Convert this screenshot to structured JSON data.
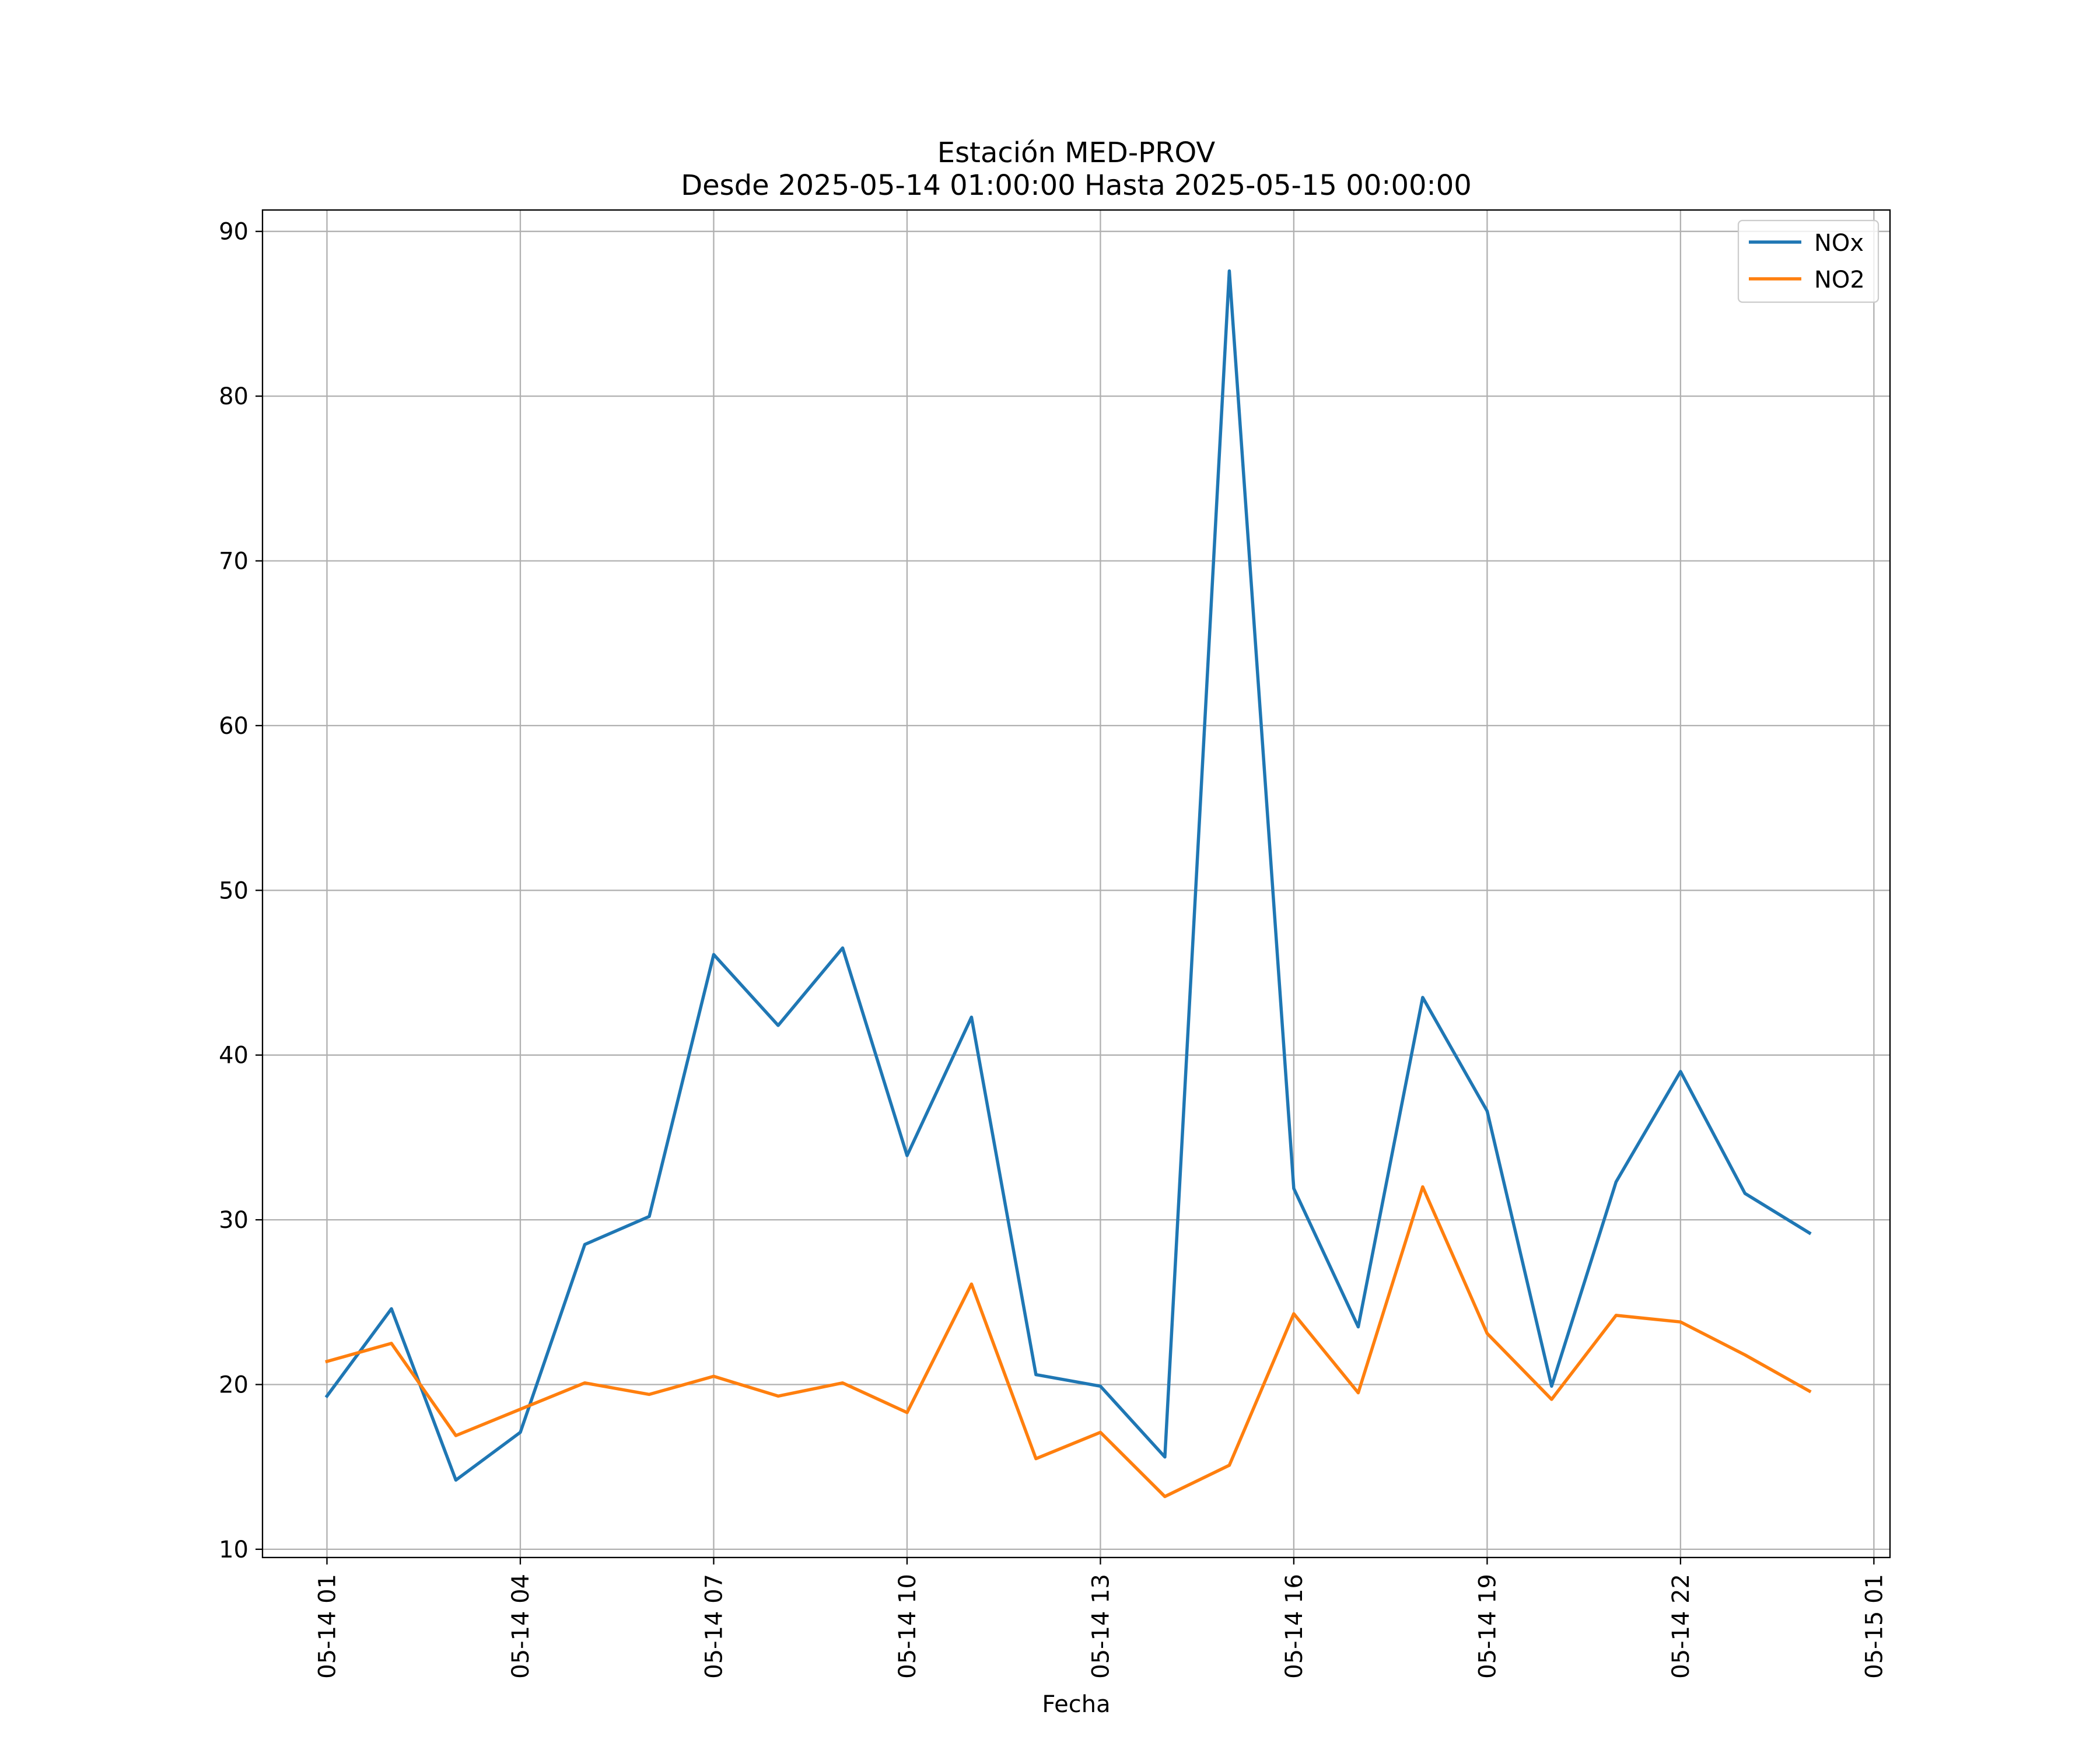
{
  "chart_data": {
    "type": "line",
    "title": "Estación MED-PROV",
    "subtitle": "Desde 2025-05-14 01:00:00 Hasta 2025-05-15 00:00:00",
    "xlabel": "Fecha",
    "ylabel": "",
    "x": [
      "2025-05-14 01:00",
      "2025-05-14 02:00",
      "2025-05-14 03:00",
      "2025-05-14 04:00",
      "2025-05-14 05:00",
      "2025-05-14 06:00",
      "2025-05-14 07:00",
      "2025-05-14 08:00",
      "2025-05-14 09:00",
      "2025-05-14 10:00",
      "2025-05-14 11:00",
      "2025-05-14 12:00",
      "2025-05-14 13:00",
      "2025-05-14 14:00",
      "2025-05-14 15:00",
      "2025-05-14 16:00",
      "2025-05-14 17:00",
      "2025-05-14 18:00",
      "2025-05-14 19:00",
      "2025-05-14 20:00",
      "2025-05-14 21:00",
      "2025-05-14 22:00",
      "2025-05-14 23:00",
      "2025-05-15 00:00"
    ],
    "series": [
      {
        "name": "NOx",
        "color": "#1f77b4",
        "values": [
          19.3,
          24.6,
          14.2,
          17.1,
          28.5,
          30.2,
          46.1,
          41.8,
          46.5,
          33.9,
          42.3,
          20.6,
          19.9,
          15.6,
          87.6,
          31.9,
          23.5,
          43.5,
          36.6,
          19.9,
          32.3,
          39.0,
          31.6,
          29.2
        ]
      },
      {
        "name": "NO2",
        "color": "#ff7f0e",
        "values": [
          21.4,
          22.5,
          16.9,
          18.5,
          20.1,
          19.4,
          20.5,
          19.3,
          20.1,
          18.3,
          26.1,
          15.5,
          17.1,
          13.2,
          15.1,
          24.3,
          19.5,
          32.0,
          23.1,
          19.1,
          24.2,
          23.8,
          21.8,
          19.6
        ]
      }
    ],
    "xticks": [
      "05-14 01",
      "05-14 04",
      "05-14 07",
      "05-14 10",
      "05-14 13",
      "05-14 16",
      "05-14 19",
      "05-14 22",
      "05-15 01"
    ],
    "xticks_x": [
      "2025-05-14 01:00",
      "2025-05-14 04:00",
      "2025-05-14 07:00",
      "2025-05-14 10:00",
      "2025-05-14 13:00",
      "2025-05-14 16:00",
      "2025-05-14 19:00",
      "2025-05-14 22:00",
      "2025-05-15 01:00"
    ],
    "xlim": [
      "2025-05-14 00:00",
      "2025-05-15 01:15"
    ],
    "yticks": [
      10,
      20,
      30,
      40,
      50,
      60,
      70,
      80,
      90
    ],
    "ylim": [
      9.5,
      91.3
    ],
    "grid": true,
    "legend_position": "top-right"
  }
}
